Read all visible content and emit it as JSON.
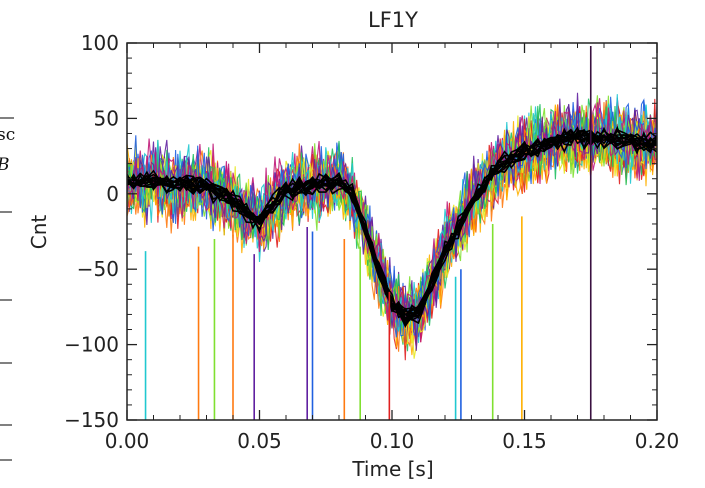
{
  "page_fragment": {
    "text_line_1": "sc",
    "text_line_2": "B"
  },
  "chart_data": {
    "type": "line",
    "title": "LF1Y",
    "xlabel": "Time [s]",
    "ylabel": "Cnt",
    "xlim": [
      0.0,
      0.2
    ],
    "ylim": [
      -150,
      100
    ],
    "x_ticks": [
      0.0,
      0.05,
      0.1,
      0.15,
      0.2
    ],
    "x_tick_labels": [
      "0.00",
      "0.05",
      "0.10",
      "0.15",
      "0.20"
    ],
    "y_ticks": [
      100,
      50,
      0,
      -50,
      -100,
      -150
    ],
    "y_tick_labels": [
      "100",
      "50",
      "0",
      "−50",
      "−100",
      "−150"
    ],
    "grid": false,
    "legend": "none",
    "mean_waveform": {
      "x": [
        0.0,
        0.01,
        0.02,
        0.03,
        0.04,
        0.045,
        0.05,
        0.055,
        0.06,
        0.07,
        0.08,
        0.085,
        0.09,
        0.095,
        0.1,
        0.105,
        0.11,
        0.115,
        0.12,
        0.13,
        0.14,
        0.15,
        0.16,
        0.17,
        0.18,
        0.19,
        0.2
      ],
      "y": [
        8,
        8,
        7,
        5,
        -5,
        -12,
        -18,
        -8,
        2,
        6,
        8,
        0,
        -25,
        -50,
        -72,
        -82,
        -78,
        -60,
        -38,
        -5,
        18,
        28,
        35,
        38,
        37,
        35,
        34
      ]
    },
    "overlay_colors": [
      "#e02020",
      "#ff7a10",
      "#ffb000",
      "#e8e820",
      "#80e030",
      "#20c060",
      "#20c8d0",
      "#2060e0",
      "#6020a0",
      "#c01878"
    ],
    "dark_trace_color": "#000000",
    "spikes": [
      {
        "x": 0.007,
        "y_top": -38,
        "color": "#20c8d0"
      },
      {
        "x": 0.027,
        "y_top": -35,
        "color": "#ff7a10"
      },
      {
        "x": 0.033,
        "y_top": -30,
        "color": "#80e030"
      },
      {
        "x": 0.04,
        "y_top": -27,
        "color": "#ff7a10"
      },
      {
        "x": 0.048,
        "y_top": -40,
        "color": "#6020a0"
      },
      {
        "x": 0.068,
        "y_top": -22,
        "color": "#6020a0"
      },
      {
        "x": 0.07,
        "y_top": -25,
        "color": "#2060e0"
      },
      {
        "x": 0.082,
        "y_top": -30,
        "color": "#ff7a10"
      },
      {
        "x": 0.088,
        "y_top": -35,
        "color": "#80e030"
      },
      {
        "x": 0.099,
        "y_top": -65,
        "color": "#e02020"
      },
      {
        "x": 0.124,
        "y_top": -55,
        "color": "#20c8d0"
      },
      {
        "x": 0.126,
        "y_top": -50,
        "color": "#2060e0"
      },
      {
        "x": 0.138,
        "y_top": -20,
        "color": "#80e030"
      },
      {
        "x": 0.149,
        "y_top": -15,
        "color": "#ffb000"
      },
      {
        "x": 0.175,
        "y_top": 98,
        "color": "#3a1040"
      }
    ]
  }
}
